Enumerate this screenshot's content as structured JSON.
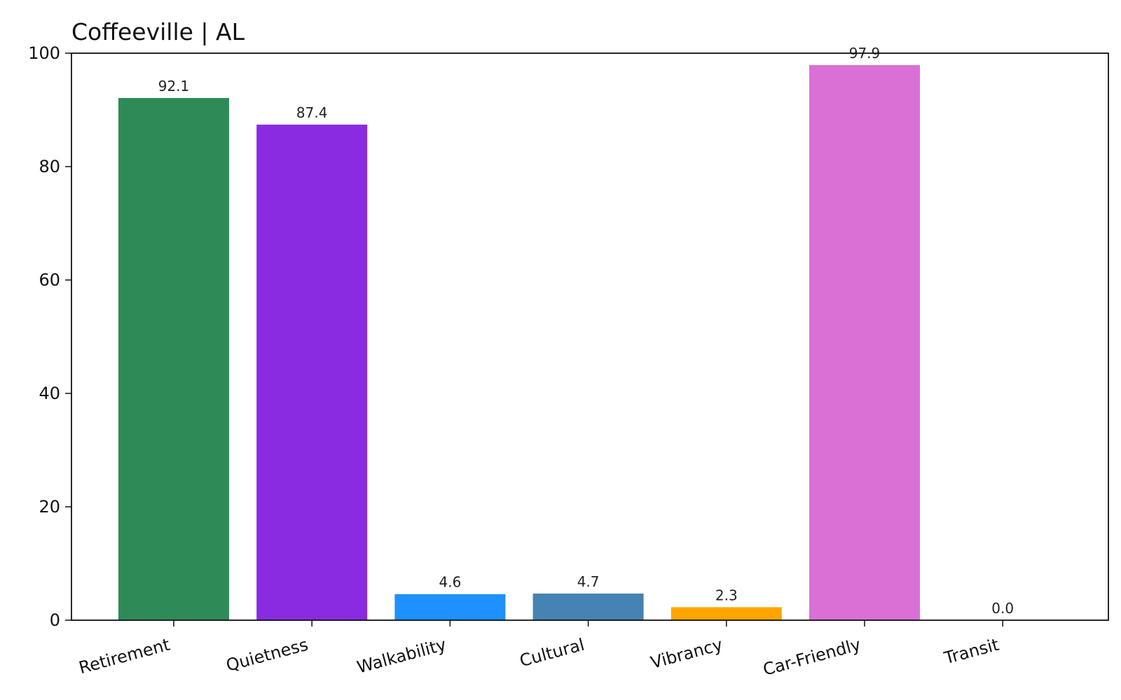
{
  "chart_data": {
    "type": "bar",
    "title": "Coffeeville | AL",
    "xlabel": "",
    "ylabel": "",
    "categories": [
      "Retirement",
      "Quietness",
      "Walkability",
      "Cultural",
      "Vibrancy",
      "Car-Friendly",
      "Transit"
    ],
    "values": [
      92.1,
      87.4,
      4.6,
      4.7,
      2.3,
      97.9,
      0.0
    ],
    "value_labels": [
      "92.1",
      "87.4",
      "4.6",
      "4.7",
      "2.3",
      "97.9",
      "0.0"
    ],
    "colors": [
      "#2e8b57",
      "#8a2be2",
      "#1e90ff",
      "#4682b4",
      "#ffa500",
      "#da70d6",
      "#808080"
    ],
    "ylim": [
      0,
      100
    ],
    "yticks": [
      0,
      20,
      40,
      60,
      80,
      100
    ],
    "ytick_labels": [
      "0",
      "20",
      "40",
      "60",
      "80",
      "100"
    ],
    "grid": false,
    "legend": "none"
  }
}
